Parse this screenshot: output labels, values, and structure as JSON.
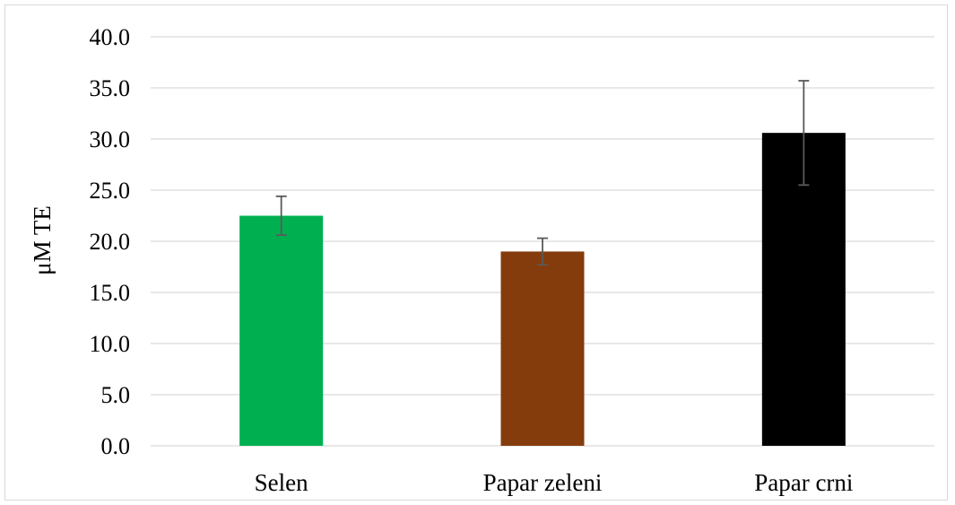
{
  "chart_data": {
    "type": "bar",
    "categories": [
      "Selen",
      "Papar zeleni",
      "Papar crni"
    ],
    "values": [
      22.5,
      19.0,
      30.6
    ],
    "error": [
      1.9,
      1.3,
      5.1
    ],
    "colors": [
      "#00b050",
      "#843c0c",
      "#000000"
    ],
    "ylabel": "μM TE",
    "ylim": [
      0,
      40
    ],
    "yticks": [
      "0.0",
      "5.0",
      "10.0",
      "15.0",
      "20.0",
      "25.0",
      "30.0",
      "35.0",
      "40.0"
    ],
    "grid": true
  }
}
